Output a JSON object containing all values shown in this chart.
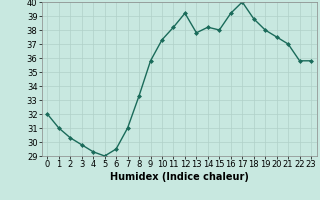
{
  "x": [
    0,
    1,
    2,
    3,
    4,
    5,
    6,
    7,
    8,
    9,
    10,
    11,
    12,
    13,
    14,
    15,
    16,
    17,
    18,
    19,
    20,
    21,
    22,
    23
  ],
  "y": [
    32,
    31,
    30.3,
    29.8,
    29.3,
    29.0,
    29.5,
    31.0,
    33.3,
    35.8,
    37.3,
    38.2,
    39.2,
    37.8,
    38.2,
    38.0,
    39.2,
    40.0,
    38.8,
    38.0,
    37.5,
    37.0,
    35.8,
    35.8
  ],
  "line_color": "#1a6b5a",
  "marker": "D",
  "marker_size": 2,
  "line_width": 1.0,
  "bg_color": "#c8e8e0",
  "grid_color": "#b0d0c8",
  "xlabel": "Humidex (Indice chaleur)",
  "xlabel_fontsize": 7,
  "xlabel_fontweight": "bold",
  "xlim": [
    -0.5,
    23.5
  ],
  "ylim": [
    29,
    40
  ],
  "yticks": [
    29,
    30,
    31,
    32,
    33,
    34,
    35,
    36,
    37,
    38,
    39,
    40
  ],
  "xticks": [
    0,
    1,
    2,
    3,
    4,
    5,
    6,
    7,
    8,
    9,
    10,
    11,
    12,
    13,
    14,
    15,
    16,
    17,
    18,
    19,
    20,
    21,
    22,
    23
  ],
  "tick_fontsize": 6
}
